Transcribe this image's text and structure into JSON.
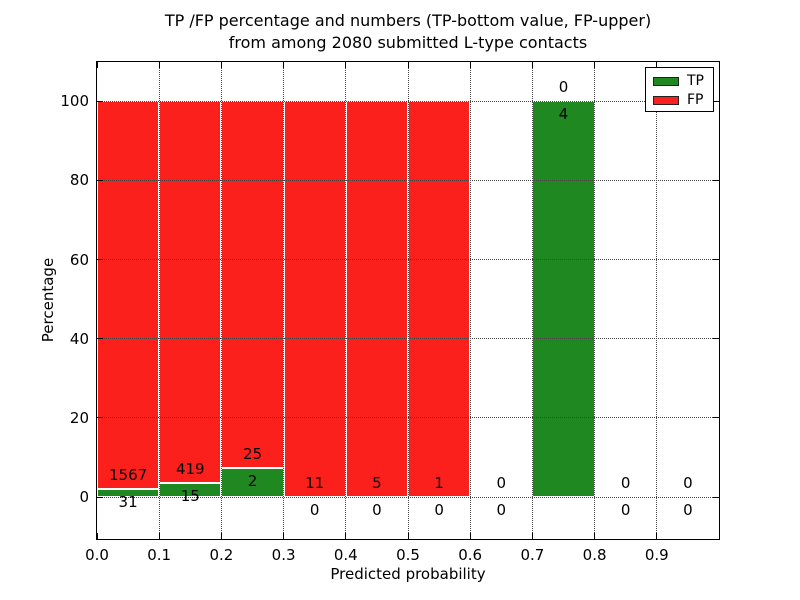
{
  "chart_data": {
    "type": "bar",
    "stacked": true,
    "title": "TP /FP percentage and numbers (TP-bottom value, FP-upper) from among 2080 submitted L-type contacts",
    "title_line1": "TP /FP percentage and numbers (TP-bottom value, FP-upper)",
    "title_line2": "from among 2080 submitted L-type contacts",
    "xlabel": "Predicted probability",
    "ylabel": "Percentage",
    "xlim": [
      0.0,
      1.0
    ],
    "ylim": [
      -10.6,
      109.9
    ],
    "x_ticks": [
      0.0,
      0.1,
      0.2,
      0.3,
      0.4,
      0.5,
      0.6,
      0.7,
      0.8,
      0.9
    ],
    "x_tick_labels": [
      "0.0",
      "0.1",
      "0.2",
      "0.3",
      "0.4",
      "0.5",
      "0.6",
      "0.7",
      "0.8",
      "0.9"
    ],
    "y_ticks": [
      0,
      20,
      40,
      60,
      80,
      100
    ],
    "y_tick_labels": [
      "0",
      "20",
      "40",
      "60",
      "80",
      "100"
    ],
    "grid": "dotted",
    "legend_position": "upper right",
    "legend": {
      "entries": [
        {
          "label": "TP",
          "color": "#208820"
        },
        {
          "label": "FP",
          "color": "#fb201c"
        }
      ]
    },
    "total_contacts": 2080,
    "categories": [
      "0.0-0.1",
      "0.1-0.2",
      "0.2-0.3",
      "0.3-0.4",
      "0.4-0.5",
      "0.5-0.6",
      "0.6-0.7",
      "0.7-0.8",
      "0.8-0.9",
      "0.9-1.0"
    ],
    "series": [
      {
        "name": "TP",
        "values": [
          31,
          15,
          2,
          0,
          0,
          0,
          0,
          4,
          0,
          0
        ]
      },
      {
        "name": "FP",
        "values": [
          1567,
          419,
          25,
          11,
          5,
          1,
          0,
          0,
          0,
          0
        ]
      }
    ],
    "bar_label_rule": "FP count above TP/FP boundary, TP count below boundary"
  },
  "colors": {
    "tp": "#208820",
    "fp": "#fb201c",
    "bar_edge": "#ffffff",
    "grid": "#444444",
    "spine": "#000000",
    "text": "#000000",
    "background": "#ffffff"
  }
}
